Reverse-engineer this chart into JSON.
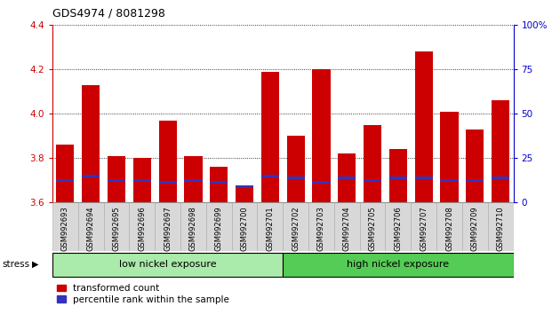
{
  "title": "GDS4974 / 8081298",
  "samples": [
    "GSM992693",
    "GSM992694",
    "GSM992695",
    "GSM992696",
    "GSM992697",
    "GSM992698",
    "GSM992699",
    "GSM992700",
    "GSM992701",
    "GSM992702",
    "GSM992703",
    "GSM992704",
    "GSM992705",
    "GSM992706",
    "GSM992707",
    "GSM992708",
    "GSM992709",
    "GSM992710"
  ],
  "red_values": [
    3.86,
    4.13,
    3.81,
    3.8,
    3.97,
    3.81,
    3.76,
    3.67,
    4.19,
    3.9,
    4.2,
    3.82,
    3.95,
    3.84,
    4.28,
    4.01,
    3.93,
    4.06
  ],
  "blue_values": [
    3.7,
    3.72,
    3.7,
    3.7,
    3.69,
    3.7,
    3.69,
    3.67,
    3.72,
    3.71,
    3.69,
    3.71,
    3.7,
    3.71,
    3.71,
    3.7,
    3.7,
    3.71
  ],
  "ymin": 3.6,
  "ymax": 4.4,
  "yticks": [
    3.6,
    3.8,
    4.0,
    4.2,
    4.4
  ],
  "right_yticks": [
    0,
    25,
    50,
    75,
    100
  ],
  "right_ytick_labels": [
    "0",
    "25",
    "50",
    "75",
    "100%"
  ],
  "bar_color": "#cc0000",
  "blue_color": "#3333bb",
  "tick_color_left": "#cc0000",
  "tick_color_right": "#0000cc",
  "low_nickel_samples": 9,
  "group_low_label": "low nickel exposure",
  "group_high_label": "high nickel exposure",
  "group_low_color": "#aaeaaa",
  "group_high_color": "#55cc55",
  "stress_label": "stress",
  "legend_red": "transformed count",
  "legend_blue": "percentile rank within the sample",
  "bar_width": 0.7,
  "xticklabel_bg": "#d8d8d8"
}
